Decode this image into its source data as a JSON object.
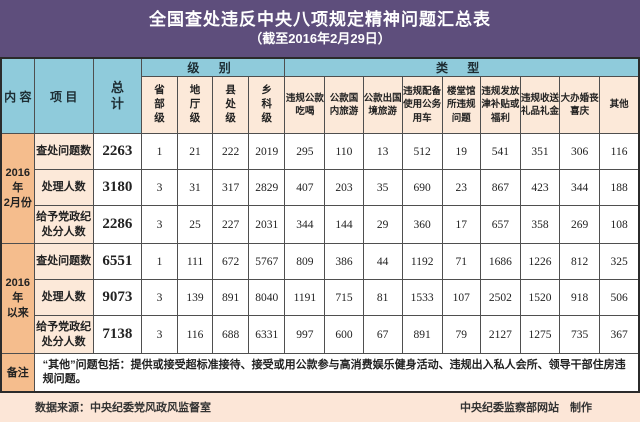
{
  "title": {
    "main": "全国查处违反中央八项规定精神问题汇总表",
    "subtitle": "（截至2016年2月29日）"
  },
  "colors": {
    "background_purple": "#5e4e7c",
    "header_blue": "#8fcbdb",
    "row_label_orange": "#f5bd8d",
    "subheader_peach": "#fce9d9",
    "footer_peach": "#fce6d7",
    "title_text": "#ffffff"
  },
  "chart_data": {
    "type": "table",
    "title": "全国查处违反中央八项规定精神问题汇总表",
    "subtitle": "（截至2016年2月29日）",
    "corner_headers": {
      "content": "内 容",
      "item": "项 目",
      "total": "总计"
    },
    "group_headers": {
      "level": "级 别",
      "type": "类 型"
    },
    "level_headers": [
      "省部级",
      "地厅级",
      "县处级",
      "乡科级"
    ],
    "type_headers": [
      "违规公款吃喝",
      "公款国内旅游",
      "公款出国境旅游",
      "违规配备使用公务用车",
      "楼堂馆所违规问题",
      "违规发放津补贴或福利",
      "违规收送礼品礼金",
      "大办婚丧喜庆",
      "其他"
    ],
    "sections": [
      {
        "period": "2016年\n2月份",
        "rows": [
          {
            "item": "查处问题数",
            "total": "2263",
            "values": [
              "1",
              "21",
              "222",
              "2019",
              "295",
              "110",
              "13",
              "512",
              "19",
              "541",
              "351",
              "306",
              "116"
            ]
          },
          {
            "item": "处理人数",
            "total": "3180",
            "values": [
              "3",
              "31",
              "317",
              "2829",
              "407",
              "203",
              "35",
              "690",
              "23",
              "867",
              "423",
              "344",
              "188"
            ]
          },
          {
            "item": "给予党政纪处分人数",
            "total": "2286",
            "values": [
              "3",
              "25",
              "227",
              "2031",
              "344",
              "144",
              "29",
              "360",
              "17",
              "657",
              "358",
              "269",
              "108"
            ]
          }
        ]
      },
      {
        "period": "2016年\n以来",
        "rows": [
          {
            "item": "查处问题数",
            "total": "6551",
            "values": [
              "1",
              "111",
              "672",
              "5767",
              "809",
              "386",
              "44",
              "1192",
              "71",
              "1686",
              "1226",
              "812",
              "325"
            ]
          },
          {
            "item": "处理人数",
            "total": "9073",
            "values": [
              "3",
              "139",
              "891",
              "8040",
              "1191",
              "715",
              "81",
              "1533",
              "107",
              "2502",
              "1520",
              "918",
              "506"
            ]
          },
          {
            "item": "给予党政纪处分人数",
            "total": "7138",
            "values": [
              "3",
              "116",
              "688",
              "6331",
              "997",
              "600",
              "67",
              "891",
              "79",
              "2127",
              "1275",
              "735",
              "367"
            ]
          }
        ]
      }
    ],
    "note": {
      "label": "备注",
      "text": "“其他”问题包括：提供或接受超标准接待、接受或用公款参与高消费娱乐健身活动、违规出入私人会所、领导干部住房违规问题。"
    }
  },
  "footer": {
    "source": "数据来源：中央纪委党风政风监督室",
    "credit": "中央纪委监察部网站　制作"
  }
}
